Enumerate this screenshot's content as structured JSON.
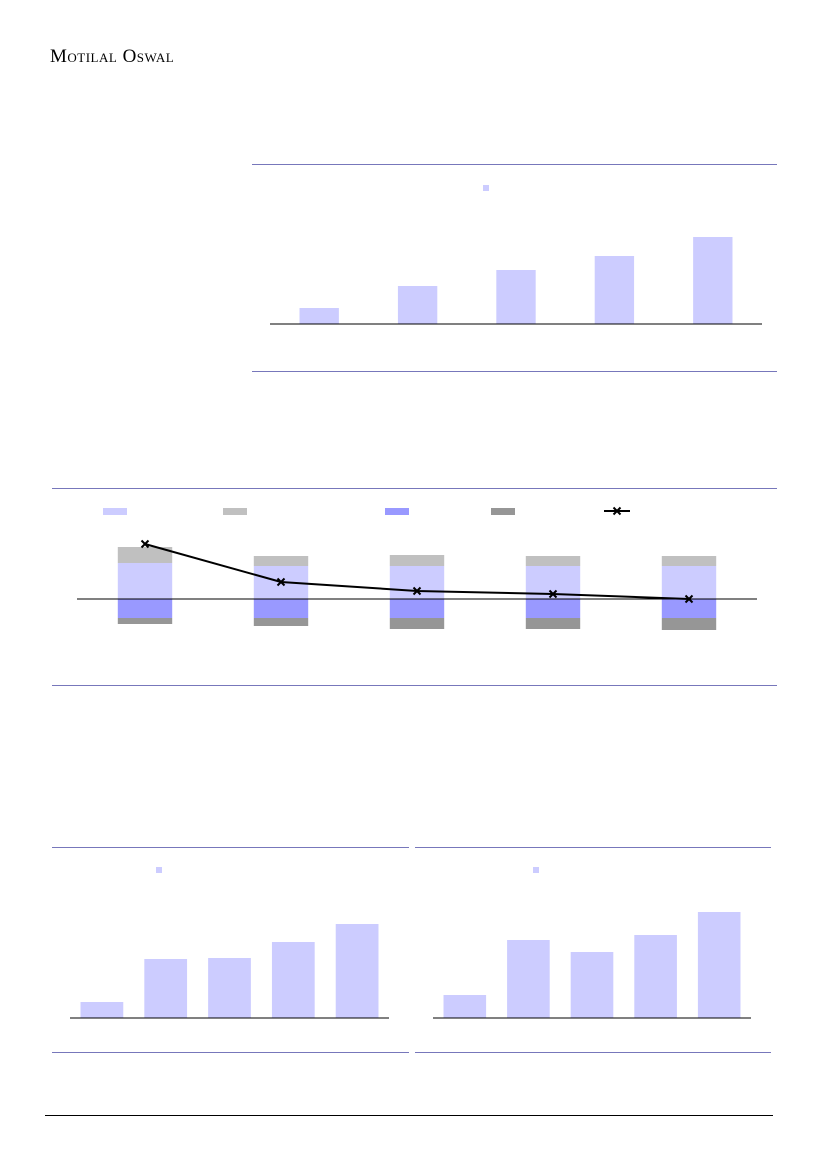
{
  "header": {
    "brand": "Motilal Oswal"
  },
  "chart_data": [
    {
      "type": "bar",
      "values": [
        16,
        38,
        54,
        68,
        87
      ],
      "color": "#ccccff",
      "ylim": [
        0,
        100
      ],
      "categories": [
        null,
        null,
        null,
        null,
        null
      ]
    },
    {
      "type": "combo",
      "categories": [
        null,
        null,
        null,
        null,
        null
      ],
      "ylim": [
        -40,
        70
      ],
      "series": [
        {
          "type": "bar",
          "color": "#ccccff",
          "values": [
            36,
            33,
            33,
            33,
            33
          ]
        },
        {
          "type": "bar",
          "color": "#c0c0c0",
          "values": [
            16,
            10,
            11,
            10,
            10
          ]
        },
        {
          "type": "bar",
          "color": "#9999ff",
          "values": [
            -19,
            -19,
            -19,
            -19,
            -19
          ]
        },
        {
          "type": "bar",
          "color": "#969696",
          "values": [
            -6,
            -8,
            -11,
            -11,
            -12
          ]
        },
        {
          "type": "line",
          "color": "#000000",
          "values": [
            55,
            17,
            8,
            5,
            0
          ]
        }
      ]
    },
    {
      "type": "bar",
      "values": [
        16,
        59,
        60,
        76,
        94
      ],
      "color": "#ccccff",
      "ylim": [
        0,
        110
      ],
      "categories": [
        null,
        null,
        null,
        null,
        null
      ]
    },
    {
      "type": "bar",
      "values": [
        23,
        78,
        66,
        83,
        106
      ],
      "color": "#ccccff",
      "ylim": [
        0,
        110
      ],
      "categories": [
        null,
        null,
        null,
        null,
        null
      ]
    }
  ]
}
